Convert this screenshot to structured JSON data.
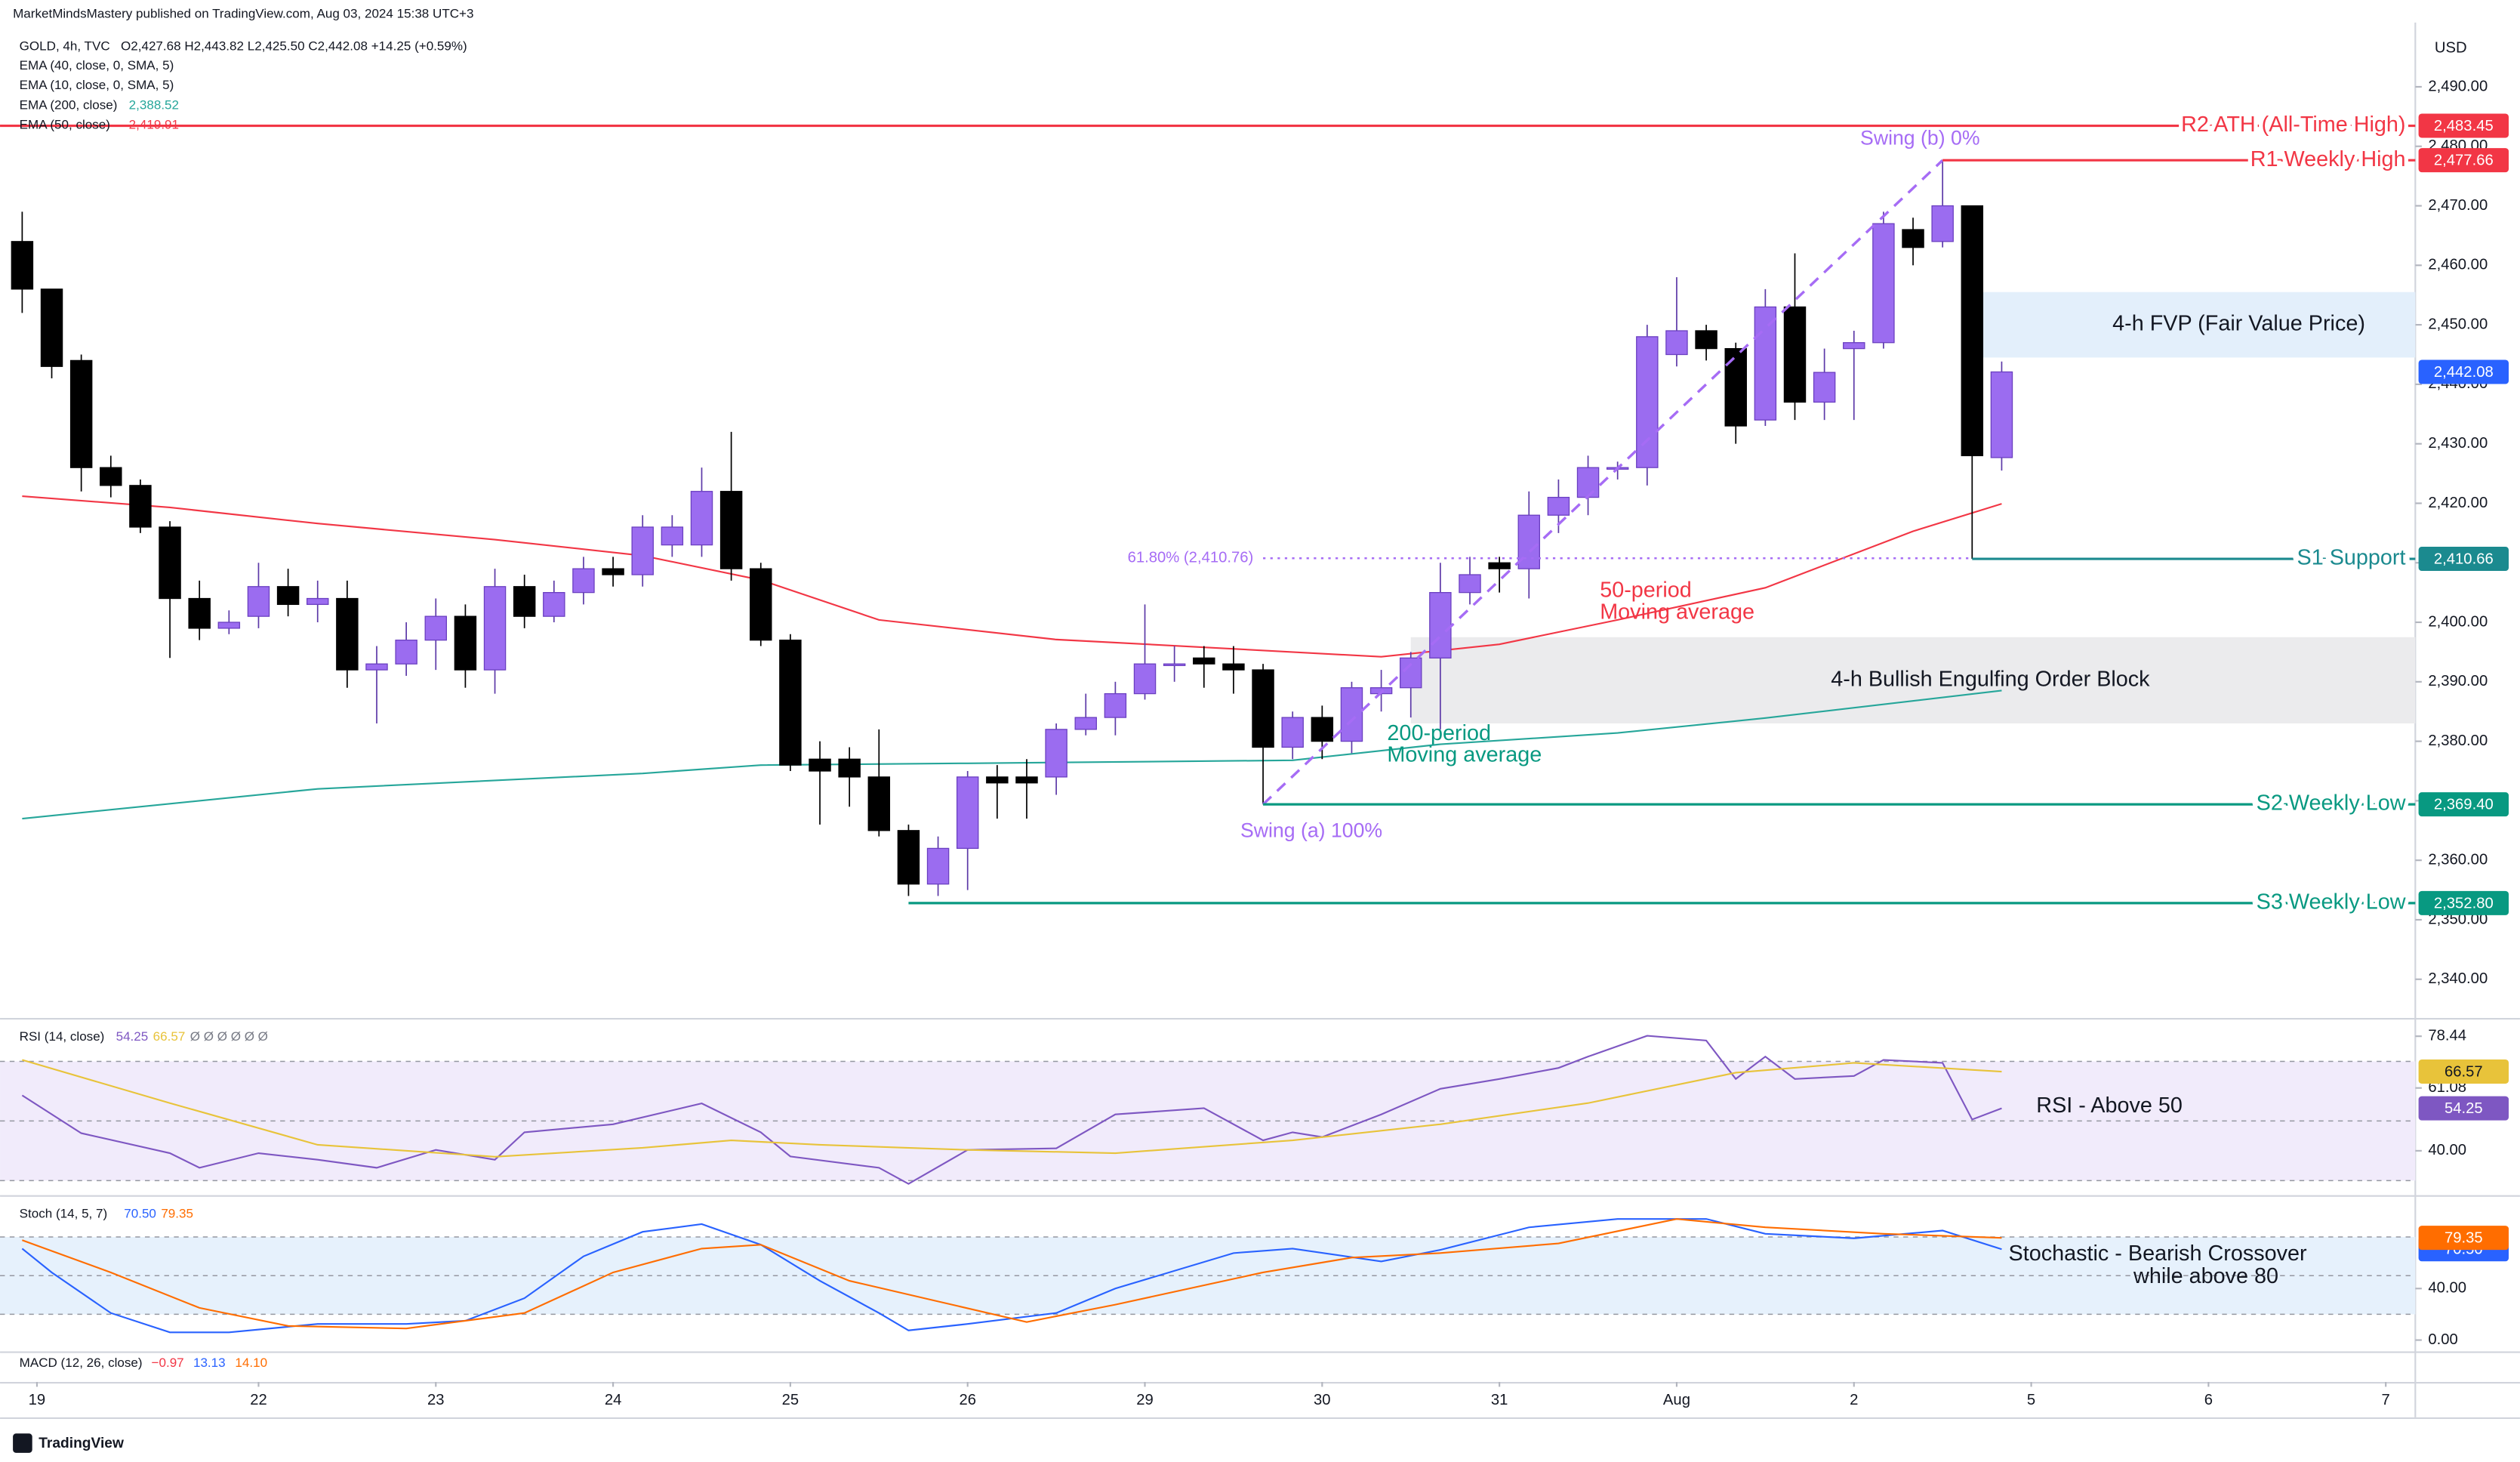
{
  "header": {
    "attribution": "MarketMindsMastery published on TradingView.com, Aug 03, 2024 15:38 UTC+3"
  },
  "footer": {
    "brand": "TradingView"
  },
  "chart_data": [
    {
      "type": "candlestick",
      "title": "GOLD, 4h, TVC",
      "ohlc_text": "O2,427.68 H2,443.82 L2,425.50 C2,442.08 +14.25 (+0.59%)",
      "indicators": [
        "EMA (40, close, 0, SMA, 5)",
        "EMA (10, close, 0, SMA, 5)"
      ],
      "y_unit": "USD",
      "grid": false,
      "colors": {
        "up": "#9b6cf0",
        "down": "#000000"
      },
      "open": [
        2464,
        2456,
        2444,
        2426,
        2423,
        2416,
        2404,
        2399,
        2401,
        2406,
        2403,
        2404,
        2392,
        2393,
        2397,
        2401,
        2392,
        2406,
        2401,
        2405,
        2409,
        2408,
        2413,
        2413,
        2422,
        2409,
        2397,
        2377,
        2377,
        2374,
        2365,
        2356,
        2362,
        2374,
        2374,
        2374,
        2382,
        2384,
        2388,
        2393,
        2394,
        2393,
        2392,
        2379,
        2384,
        2380,
        2388,
        2389,
        2394,
        2405,
        2410,
        2409,
        2418,
        2421,
        2426,
        2426,
        2445,
        2449,
        2446,
        2434,
        2453,
        2437,
        2446,
        2447,
        2466,
        2464,
        2470,
        2427.68
      ],
      "high": [
        2469,
        2456,
        2445,
        2428,
        2424,
        2417,
        2407,
        2402,
        2410,
        2409,
        2407,
        2407,
        2396,
        2400,
        2404,
        2403,
        2409,
        2408,
        2407,
        2411,
        2411,
        2418,
        2418,
        2426,
        2432,
        2410,
        2398,
        2380,
        2379,
        2382,
        2366,
        2364,
        2375,
        2376,
        2377,
        2383,
        2388,
        2390,
        2403,
        2396,
        2396,
        2396,
        2393,
        2385,
        2386,
        2390,
        2392,
        2395,
        2410,
        2411,
        2411,
        2422,
        2424,
        2428,
        2427,
        2450,
        2458,
        2450,
        2447,
        2456,
        2462,
        2446,
        2449,
        2469,
        2468,
        2477.66,
        2470,
        2443.82
      ],
      "low": [
        2452,
        2441,
        2422,
        2421,
        2415,
        2394,
        2397,
        2398,
        2399,
        2401,
        2400,
        2389,
        2383,
        2391,
        2392,
        2389,
        2388,
        2399,
        2400,
        2403,
        2406,
        2406,
        2411,
        2411,
        2407,
        2396,
        2375,
        2366,
        2369,
        2364,
        2354,
        2354,
        2355,
        2367,
        2367,
        2371,
        2381,
        2381,
        2387,
        2390,
        2389,
        2388,
        2369.4,
        2377,
        2377,
        2378,
        2385,
        2384,
        2382,
        2403,
        2405,
        2404,
        2415,
        2418,
        2424,
        2423,
        2443,
        2444,
        2430,
        2433,
        2434,
        2434,
        2434,
        2446,
        2460,
        2463,
        2410.66,
        2425.5
      ],
      "close": [
        2456,
        2443,
        2426,
        2423,
        2416,
        2404,
        2399,
        2400,
        2406,
        2403,
        2404,
        2392,
        2393,
        2397,
        2401,
        2392,
        2406,
        2401,
        2405,
        2409,
        2408,
        2416,
        2416,
        2422,
        2409,
        2397,
        2376,
        2375,
        2374,
        2365,
        2356,
        2362,
        2374,
        2373,
        2373,
        2382,
        2384,
        2388,
        2393,
        2393,
        2393,
        2392,
        2379,
        2384,
        2380,
        2389,
        2389,
        2394,
        2405,
        2408,
        2409,
        2418,
        2421,
        2426,
        2426,
        2448,
        2449,
        2446,
        2433,
        2453,
        2437,
        2442,
        2447,
        2467,
        2463,
        2470,
        2428,
        2442.08
      ],
      "series": [
        {
          "name": "EMA (200, close)",
          "last_label": "2,388.52",
          "color": "#26a69a",
          "x": [
            0,
            10,
            21,
            25,
            32,
            43,
            48,
            54,
            59,
            67
          ],
          "values": [
            2367,
            2372,
            2374.6,
            2376,
            2376.3,
            2376.8,
            2379.5,
            2381.4,
            2383.9,
            2388.52
          ]
        },
        {
          "name": "EMA (50, close)",
          "last_label": "2,419.91",
          "color": "#f23645",
          "x": [
            0,
            5,
            10,
            16,
            21,
            25,
            29,
            35,
            40,
            46,
            50,
            54,
            59,
            64,
            67
          ],
          "values": [
            2421.2,
            2419.3,
            2416.6,
            2413.9,
            2411.2,
            2407.1,
            2400.4,
            2397.1,
            2395.8,
            2394.2,
            2396.3,
            2400.4,
            2405.8,
            2415.3,
            2419.91
          ]
        }
      ],
      "xlim": [
        -0.75,
        81
      ],
      "xticks": [
        {
          "value": 0.5,
          "label": "19"
        },
        {
          "value": 8,
          "label": "22"
        },
        {
          "value": 14,
          "label": "23"
        },
        {
          "value": 20,
          "label": "24"
        },
        {
          "value": 26,
          "label": "25"
        },
        {
          "value": 32,
          "label": "26"
        },
        {
          "value": 38,
          "label": "29"
        },
        {
          "value": 44,
          "label": "30"
        },
        {
          "value": 50,
          "label": "31"
        },
        {
          "value": 56,
          "label": "Aug"
        },
        {
          "value": 62,
          "label": "2"
        },
        {
          "value": 68,
          "label": "5"
        },
        {
          "value": 74,
          "label": "6"
        },
        {
          "value": 80,
          "label": "7"
        }
      ],
      "ylim": [
        2333.5,
        2500.8
      ],
      "yticks": [
        {
          "value": 2340,
          "label": "2,340.00"
        },
        {
          "value": 2350,
          "label": "2,350.00"
        },
        {
          "value": 2360,
          "label": "2,360.00"
        },
        {
          "value": 2370,
          "label": "2,370.00"
        },
        {
          "value": 2380,
          "label": "2,380.00"
        },
        {
          "value": 2390,
          "label": "2,390.00"
        },
        {
          "value": 2400,
          "label": "2,400.00"
        },
        {
          "value": 2410,
          "label": "2,410.00"
        },
        {
          "value": 2420,
          "label": "2,420.00"
        },
        {
          "value": 2430,
          "label": "2,430.00"
        },
        {
          "value": 2440,
          "label": "2,440.00"
        },
        {
          "value": 2450,
          "label": "2,450.00"
        },
        {
          "value": 2460,
          "label": "2,460.00"
        },
        {
          "value": 2470,
          "label": "2,470.00"
        },
        {
          "value": 2480,
          "label": "2,480.00"
        },
        {
          "value": 2490,
          "label": "2,490.00"
        }
      ],
      "zones": [
        {
          "label": "4-h FVP (Fair Value Price)",
          "from": 66,
          "low": 2444.5,
          "high": 2455.5,
          "color": "#e3effb"
        },
        {
          "label": "4-h Bullish Engulfing Order Block",
          "from": 47,
          "low": 2383,
          "high": 2397.5,
          "color": "#ebebed"
        }
      ],
      "levels": [
        {
          "label": "R2 ATH (All-Time High)",
          "value": 2483.45,
          "price_label": "2,483.45",
          "from": -0.75,
          "color": "#f23645"
        },
        {
          "label": "R1 Weekly High",
          "value": 2477.66,
          "price_label": "2,477.66",
          "from": 65,
          "color": "#f23645"
        },
        {
          "label": "S1 Support",
          "value": 2410.66,
          "price_label": "2,410.66",
          "from": 66,
          "color": "#1b8a8f"
        },
        {
          "label": "S2 Weekly Low",
          "value": 2369.4,
          "price_label": "2,369.40",
          "from": 42,
          "color": "#089981"
        },
        {
          "label": "S3 Weekly Low",
          "value": 2352.8,
          "price_label": "2,352.80",
          "from": 30,
          "color": "#089981"
        }
      ],
      "last_price": {
        "value": 2442.08,
        "label": "2,442.08",
        "color": "#2962ff"
      },
      "fib": {
        "label_a": "Swing (a) 100%",
        "label_b": "Swing (b) 0%",
        "a_x": 42,
        "a_price": 2369.4,
        "b_x": 65,
        "b_price": 2477.66,
        "color": "#a66cf5",
        "retracement": {
          "label": "61.80% (2,410.76)",
          "value": 2410.76,
          "from": 42,
          "to": 66
        }
      },
      "annotations": [
        {
          "lines": [
            "50-period",
            "Moving average"
          ],
          "color": "#f23645"
        },
        {
          "lines": [
            "200-period",
            "Moving average"
          ],
          "color": "#089981"
        }
      ]
    },
    {
      "type": "line",
      "title": "RSI (14, close)",
      "extra_text": "Ø Ø Ø Ø Ø Ø",
      "note": "RSI - Above 50",
      "band_color": "#f1ebfb",
      "bands": [
        70,
        50,
        30
      ],
      "ylim": [
        26.2,
        83.5
      ],
      "yticks": [
        78.44,
        61.08,
        {
          "value": 40,
          "label": "40.00"
        }
      ],
      "series": [
        {
          "last_label": "54.25",
          "color": "#7e57c2",
          "x": [
            0,
            2,
            5,
            6,
            8,
            10,
            12,
            14,
            16,
            17,
            20,
            23,
            25,
            26,
            29,
            30,
            32,
            35,
            37,
            40,
            42,
            43,
            44,
            46,
            48,
            50,
            52,
            53,
            55,
            57,
            58,
            59,
            60,
            62,
            63,
            65,
            66,
            67
          ],
          "values": [
            58.6,
            45.9,
            39.2,
            34.3,
            39.2,
            37,
            34.3,
            40.3,
            37,
            46.2,
            48.9,
            55.9,
            46.2,
            38.1,
            34.3,
            28.9,
            40.3,
            40.8,
            52.2,
            54.3,
            43.5,
            46.2,
            44.6,
            52.2,
            60.8,
            64.1,
            67.8,
            71.6,
            78.6,
            77,
            64.1,
            71.6,
            64.1,
            65.1,
            70.5,
            69.5,
            50.5,
            54.25
          ]
        },
        {
          "last_label": "66.57",
          "color": "#e8c33a",
          "x": [
            0,
            5,
            10,
            16,
            21,
            24,
            27,
            32,
            37,
            43,
            48,
            53,
            58,
            62,
            67
          ],
          "values": [
            70.5,
            56,
            42,
            38,
            41,
            43.5,
            42,
            40.3,
            39.2,
            43.5,
            48.9,
            56,
            66.2,
            69.5,
            66.57
          ]
        }
      ]
    },
    {
      "type": "line",
      "title": "Stoch (14, 5, 7)",
      "note": [
        "Stochastic - Bearish Crossover",
        "while above 80"
      ],
      "band_color": "#e6f1fc",
      "bands": [
        80,
        50,
        20
      ],
      "ylim": [
        -7.5,
        110
      ],
      "yticks": [
        {
          "value": 40,
          "label": "40.00"
        },
        {
          "value": 0,
          "label": "0.00"
        }
      ],
      "series": [
        {
          "last_label": "70.50",
          "color": "#2962ff",
          "x": [
            0,
            1,
            3,
            5,
            7,
            10,
            13,
            15,
            17,
            19,
            21,
            23,
            25,
            27,
            29,
            30,
            32,
            35,
            37,
            41,
            43,
            46,
            48,
            51,
            54,
            57,
            59,
            62,
            65,
            67
          ],
          "values": [
            71,
            52.5,
            21,
            6,
            6,
            12.5,
            12.5,
            15,
            32.5,
            65,
            84,
            90,
            74,
            46,
            21,
            7.5,
            12.5,
            21,
            40,
            67.5,
            71,
            61,
            70,
            87.5,
            94,
            94,
            82.5,
            79,
            85,
            70.5
          ]
        },
        {
          "last_label": "79.35",
          "color": "#ff6d00",
          "x": [
            0,
            3,
            6,
            9,
            13,
            17,
            20,
            23,
            25,
            28,
            31,
            34,
            37,
            42,
            45,
            48,
            52,
            56,
            59,
            63,
            67
          ],
          "values": [
            77.5,
            52.5,
            25,
            11,
            9,
            21,
            52.5,
            71,
            74,
            46,
            30,
            14,
            27.5,
            52.5,
            64,
            67.5,
            75,
            94,
            87.5,
            82.5,
            79.35
          ]
        }
      ]
    },
    {
      "type": "line",
      "title": "MACD (12, 26, close)",
      "values_text": [
        "−0.97",
        "13.13",
        "14.10"
      ],
      "colors": [
        "#f23645",
        "#2962ff",
        "#ff6d00"
      ]
    }
  ]
}
